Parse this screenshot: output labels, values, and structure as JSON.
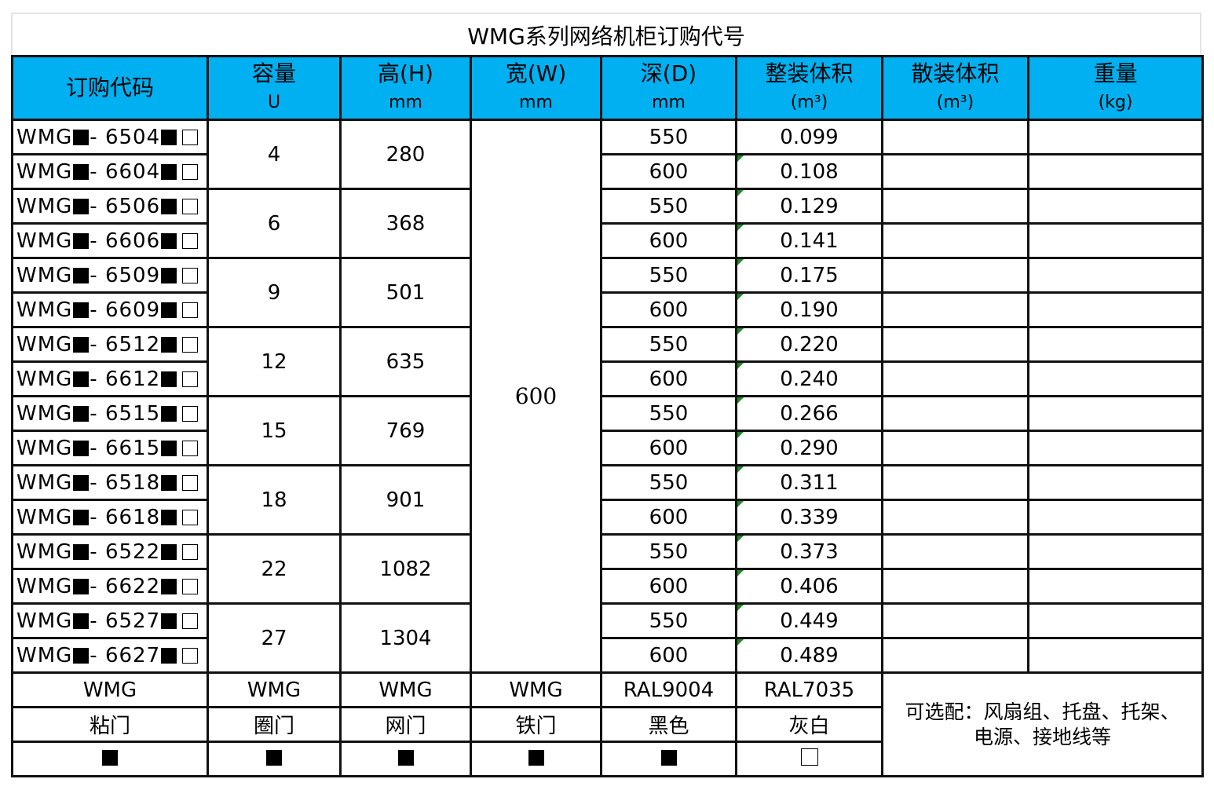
{
  "title": "WMG系列网络机柜订购代号",
  "headers": [
    {
      "label": "订购代码",
      "unit": ""
    },
    {
      "label": "容量",
      "unit": "U"
    },
    {
      "label": "高(H)",
      "unit": "mm"
    },
    {
      "label": "宽(W)",
      "unit": "mm"
    },
    {
      "label": "深(D)",
      "unit": "mm"
    },
    {
      "label": "整装体积",
      "unit": "(m³)"
    },
    {
      "label": "散装体积",
      "unit": "(m³)"
    },
    {
      "label": "重量",
      "unit": "(kg)"
    }
  ],
  "width_value": "600",
  "rows": [
    {
      "code_prefix": "WMG",
      "code_num": "- 6504",
      "capacity": "4",
      "height": "280",
      "depth": "550",
      "volume": "0.099",
      "bulk": "",
      "weight": ""
    },
    {
      "code_prefix": "WMG",
      "code_num": "- 6604",
      "capacity": "4",
      "height": "280",
      "depth": "600",
      "volume": "0.108",
      "bulk": "",
      "weight": ""
    },
    {
      "code_prefix": "WMG",
      "code_num": "- 6506",
      "capacity": "6",
      "height": "368",
      "depth": "550",
      "volume": "0.129",
      "bulk": "",
      "weight": ""
    },
    {
      "code_prefix": "WMG",
      "code_num": "- 6606",
      "capacity": "6",
      "height": "368",
      "depth": "600",
      "volume": "0.141",
      "bulk": "",
      "weight": ""
    },
    {
      "code_prefix": "WMG",
      "code_num": "- 6509",
      "capacity": "9",
      "height": "501",
      "depth": "550",
      "volume": "0.175",
      "bulk": "",
      "weight": ""
    },
    {
      "code_prefix": "WMG",
      "code_num": "- 6609",
      "capacity": "9",
      "height": "501",
      "depth": "600",
      "volume": "0.190",
      "bulk": "",
      "weight": ""
    },
    {
      "code_prefix": "WMG",
      "code_num": "- 6512",
      "capacity": "12",
      "height": "635",
      "depth": "550",
      "volume": "0.220",
      "bulk": "",
      "weight": ""
    },
    {
      "code_prefix": "WMG",
      "code_num": "- 6612",
      "capacity": "12",
      "height": "635",
      "depth": "600",
      "volume": "0.240",
      "bulk": "",
      "weight": ""
    },
    {
      "code_prefix": "WMG",
      "code_num": "- 6515",
      "capacity": "15",
      "height": "769",
      "depth": "550",
      "volume": "0.266",
      "bulk": "",
      "weight": ""
    },
    {
      "code_prefix": "WMG",
      "code_num": "- 6615",
      "capacity": "15",
      "height": "769",
      "depth": "600",
      "volume": "0.290",
      "bulk": "",
      "weight": ""
    },
    {
      "code_prefix": "WMG",
      "code_num": "- 6518",
      "capacity": "18",
      "height": "901",
      "depth": "550",
      "volume": "0.311",
      "bulk": "",
      "weight": ""
    },
    {
      "code_prefix": "WMG",
      "code_num": "- 6618",
      "capacity": "18",
      "height": "901",
      "depth": "600",
      "volume": "0.339",
      "bulk": "",
      "weight": ""
    },
    {
      "code_prefix": "WMG",
      "code_num": "- 6522",
      "capacity": "22",
      "height": "1082",
      "depth": "550",
      "volume": "0.373",
      "bulk": "",
      "weight": ""
    },
    {
      "code_prefix": "WMG",
      "code_num": "- 6622",
      "capacity": "22",
      "height": "1082",
      "depth": "600",
      "volume": "0.406",
      "bulk": "",
      "weight": ""
    },
    {
      "code_prefix": "WMG",
      "code_num": "- 6527",
      "capacity": "27",
      "height": "1304",
      "depth": "550",
      "volume": "0.449",
      "bulk": "",
      "weight": ""
    },
    {
      "code_prefix": "WMG",
      "code_num": "- 6627",
      "capacity": "27",
      "height": "1304",
      "depth": "600",
      "volume": "0.489",
      "bulk": "",
      "weight": ""
    }
  ],
  "options": [
    {
      "code": "WMG",
      "name": "粘门",
      "marker": "filled"
    },
    {
      "code": "WMG",
      "name": "圈门",
      "marker": "filled"
    },
    {
      "code": "WMG",
      "name": "网门",
      "marker": "filled"
    },
    {
      "code": "WMG",
      "name": "铁门",
      "marker": "filled"
    },
    {
      "code": "RAL9004",
      "name": "黑色",
      "marker": "filled"
    },
    {
      "code": "RAL7035",
      "name": "灰白",
      "marker": "empty"
    }
  ],
  "note": {
    "line1": "可选配：风扇组、托盘、托架、",
    "line2": "电源、接地线等"
  },
  "colors": {
    "header_bg": "#00b0f0",
    "border": "#111111",
    "corner_mark": "#1e8a1e"
  }
}
